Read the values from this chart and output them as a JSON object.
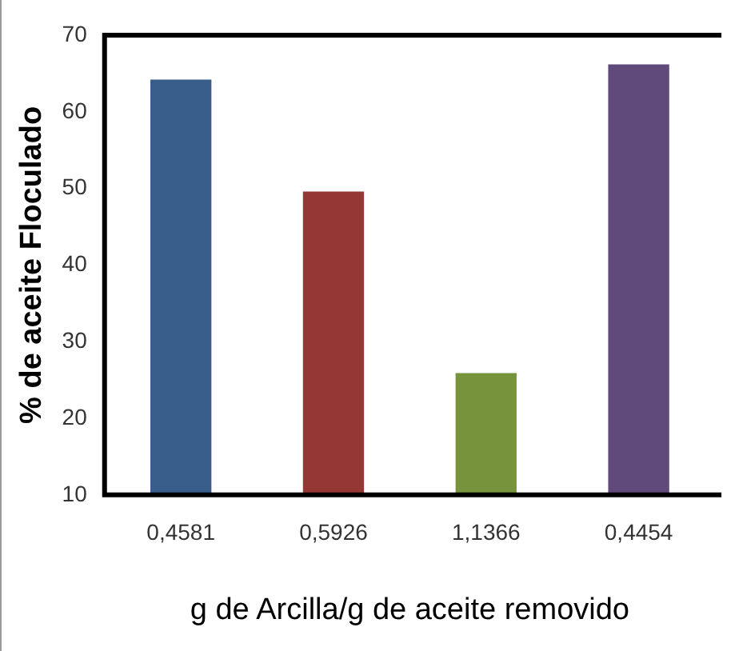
{
  "chart_data": {
    "type": "bar",
    "xlabel": "g de Arcilla/g de aceite removido",
    "ylabel": "% de aceite Floculado",
    "categories": [
      "0,4581",
      "0,5926",
      "1,1366",
      "0,4454"
    ],
    "values": [
      64.2,
      49.6,
      25.9,
      66.2
    ],
    "colors": [
      "#385d8a",
      "#953735",
      "#77933c",
      "#604a7b"
    ],
    "ylim": [
      10,
      70
    ],
    "yticks": [
      10,
      20,
      30,
      40,
      50,
      60,
      70
    ],
    "grid": false,
    "legend": false
  }
}
